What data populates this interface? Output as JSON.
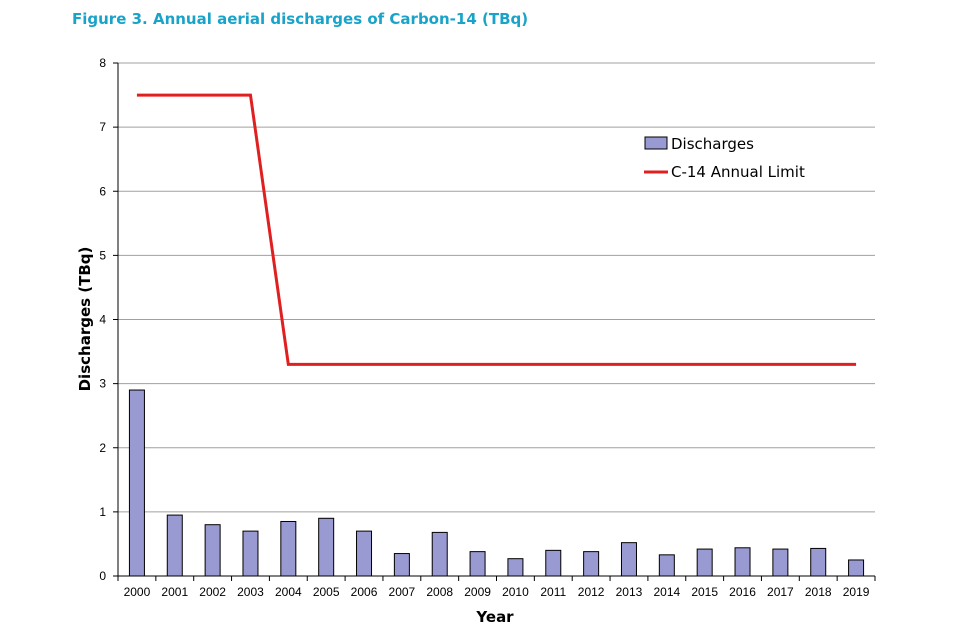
{
  "figure_title": "Figure 3.  Annual aerial discharges of Carbon-14 (TBq)",
  "colors": {
    "title": "#1aa3c9",
    "bar": "#9a9ad2",
    "limit_line": "#e02020",
    "grid": "#a0a0a0"
  },
  "chart_data": {
    "type": "bar",
    "title": "Figure 3.  Annual aerial discharges of Carbon-14 (TBq)",
    "xlabel": "Year",
    "ylabel": "Discharges (TBq)",
    "ylim": [
      0,
      8
    ],
    "yticks": [
      "0",
      "1",
      "2",
      "3",
      "4",
      "5",
      "6",
      "7",
      "8"
    ],
    "grid": true,
    "legend_position": "top-right",
    "categories": [
      "2000",
      "2001",
      "2002",
      "2003",
      "2004",
      "2005",
      "2006",
      "2007",
      "2008",
      "2009",
      "2010",
      "2011",
      "2012",
      "2013",
      "2014",
      "2015",
      "2016",
      "2017",
      "2018",
      "2019"
    ],
    "series": [
      {
        "name": "Discharges",
        "type": "bar",
        "values": [
          2.9,
          0.95,
          0.8,
          0.7,
          0.85,
          0.9,
          0.7,
          0.35,
          0.68,
          0.38,
          0.27,
          0.4,
          0.38,
          0.52,
          0.33,
          0.42,
          0.44,
          0.42,
          0.43,
          0.25
        ]
      },
      {
        "name": "C-14 Annual Limit",
        "type": "line",
        "values": [
          7.5,
          7.5,
          7.5,
          7.5,
          3.3,
          3.3,
          3.3,
          3.3,
          3.3,
          3.3,
          3.3,
          3.3,
          3.3,
          3.3,
          3.3,
          3.3,
          3.3,
          3.3,
          3.3,
          3.3
        ]
      }
    ]
  }
}
